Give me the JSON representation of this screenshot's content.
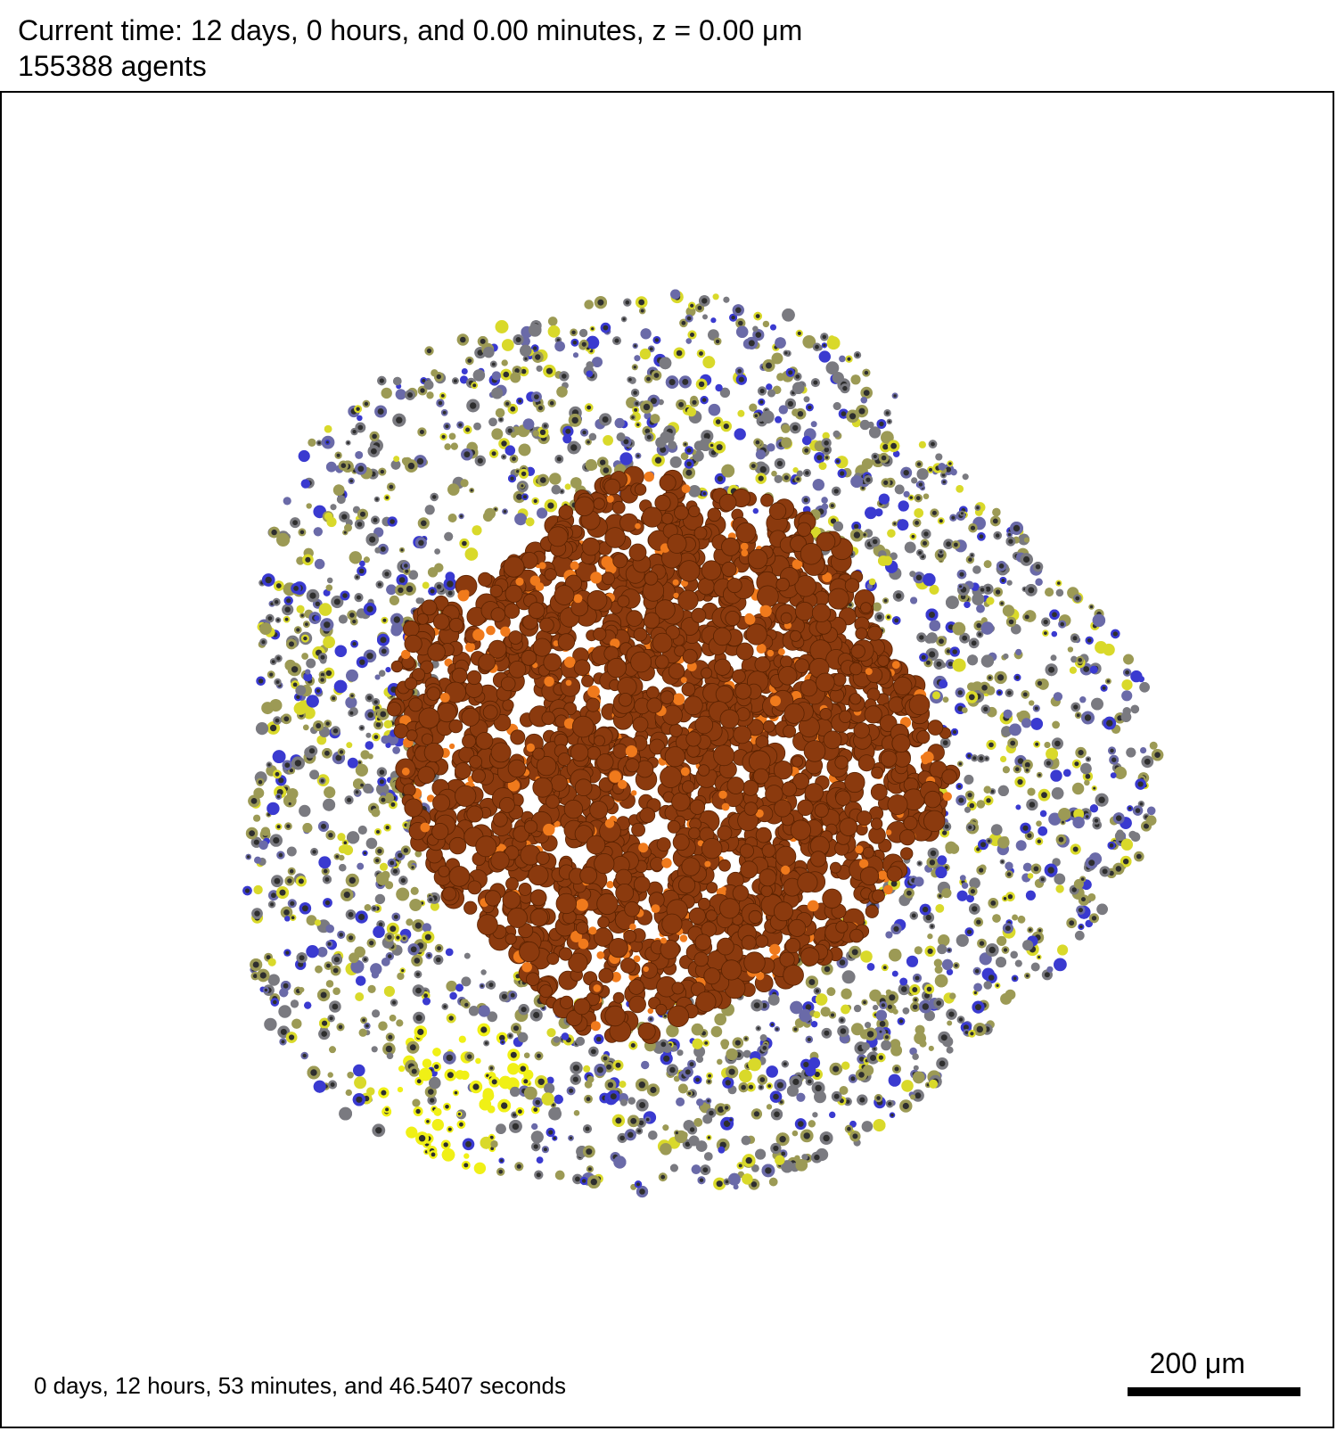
{
  "header": {
    "time_line": "Current time: 12 days, 0 hours, and 0.00 minutes, z = 0.00 μm",
    "agents_line": "155388 agents"
  },
  "viewer": {
    "sim_time": "0 days, 12 hours, 53 minutes, and 46.5407 seconds",
    "scale_label": "200 μm"
  },
  "colors": {
    "necrotic_core": "#8b3a0e",
    "necrotic_light": "#f07a1c",
    "outer_olive": "#9c9a55",
    "outer_yellow": "#d9d92a",
    "outer_bright_yellow": "#f0f016",
    "outer_gray": "#7a7a80",
    "outer_slate_blue": "#6a6aa8",
    "outer_blue": "#3a3ad0",
    "nucleus": "#2e2e2e"
  }
}
